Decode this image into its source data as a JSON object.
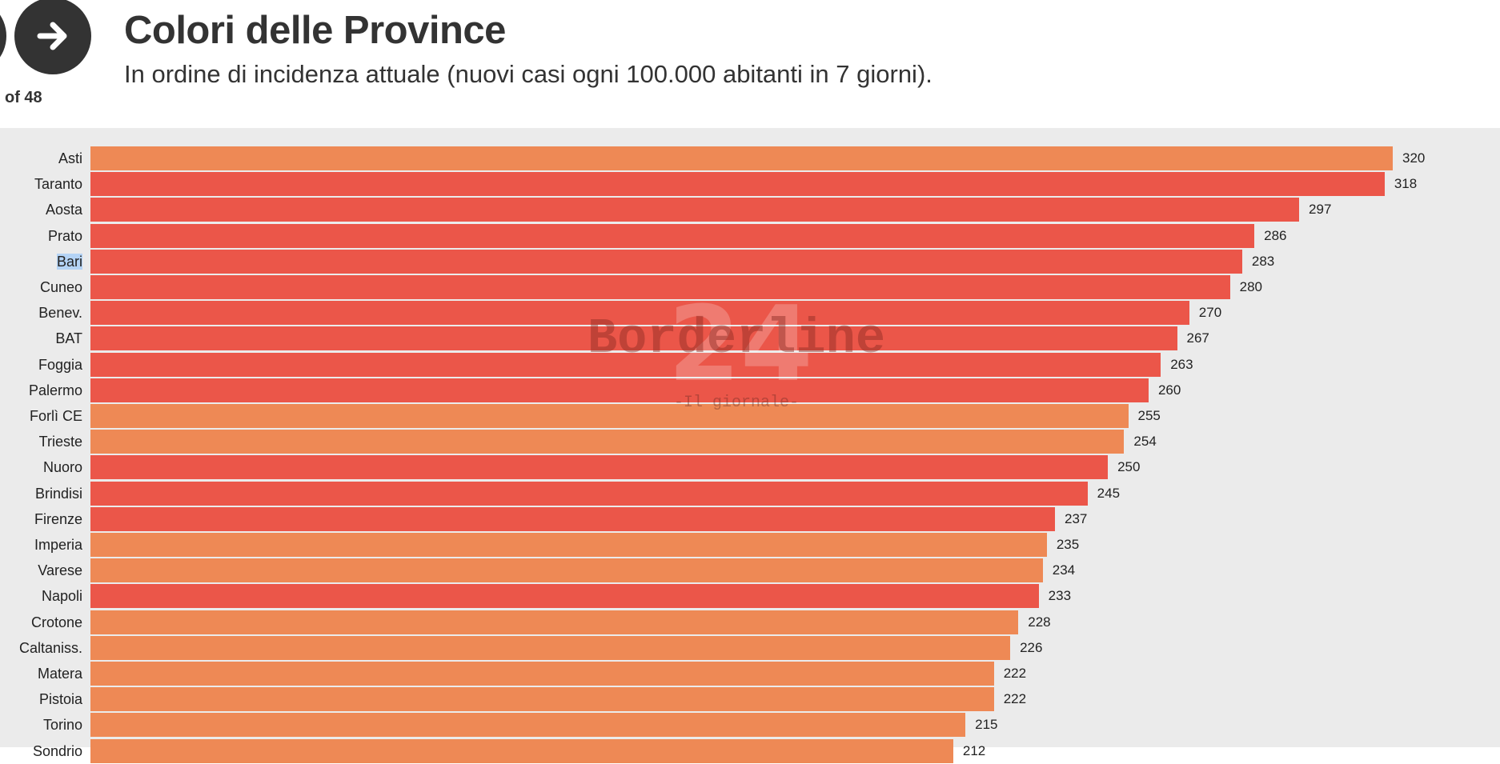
{
  "nav": {
    "counter": "of 48",
    "next_icon": "arrow-right-icon"
  },
  "header": {
    "title": "Colori delle Province",
    "subtitle": "In ordine di incidenza attuale (nuovi casi ogni 100.000 abitanti in 7 giorni)."
  },
  "colors": {
    "red": "#EB5649",
    "orange": "#EE8955",
    "background": "#EBEBEB"
  },
  "watermark": {
    "text": "Borderline",
    "number": "24",
    "tagline": "-Il giornale-"
  },
  "chart_data": {
    "type": "bar",
    "orientation": "horizontal",
    "title": "Colori delle Province",
    "xlim": [
      0,
      320
    ],
    "categories": [
      "Asti",
      "Taranto",
      "Aosta",
      "Prato",
      "Bari",
      "Cuneo",
      "Benev.",
      "BAT",
      "Foggia",
      "Palermo",
      "Forlì CE",
      "Trieste",
      "Nuoro",
      "Brindisi",
      "Firenze",
      "Imperia",
      "Varese",
      "Napoli",
      "Crotone",
      "Caltaniss.",
      "Matera",
      "Pistoia",
      "Torino",
      "Sondrio"
    ],
    "values": [
      320,
      318,
      297,
      286,
      283,
      280,
      270,
      267,
      263,
      260,
      255,
      254,
      250,
      245,
      237,
      235,
      234,
      233,
      228,
      226,
      222,
      222,
      215,
      212
    ],
    "zone": [
      "orange",
      "red",
      "red",
      "red",
      "red",
      "red",
      "red",
      "red",
      "red",
      "red",
      "orange",
      "orange",
      "red",
      "red",
      "red",
      "orange",
      "orange",
      "red",
      "orange",
      "orange",
      "orange",
      "orange",
      "orange",
      "orange"
    ]
  }
}
